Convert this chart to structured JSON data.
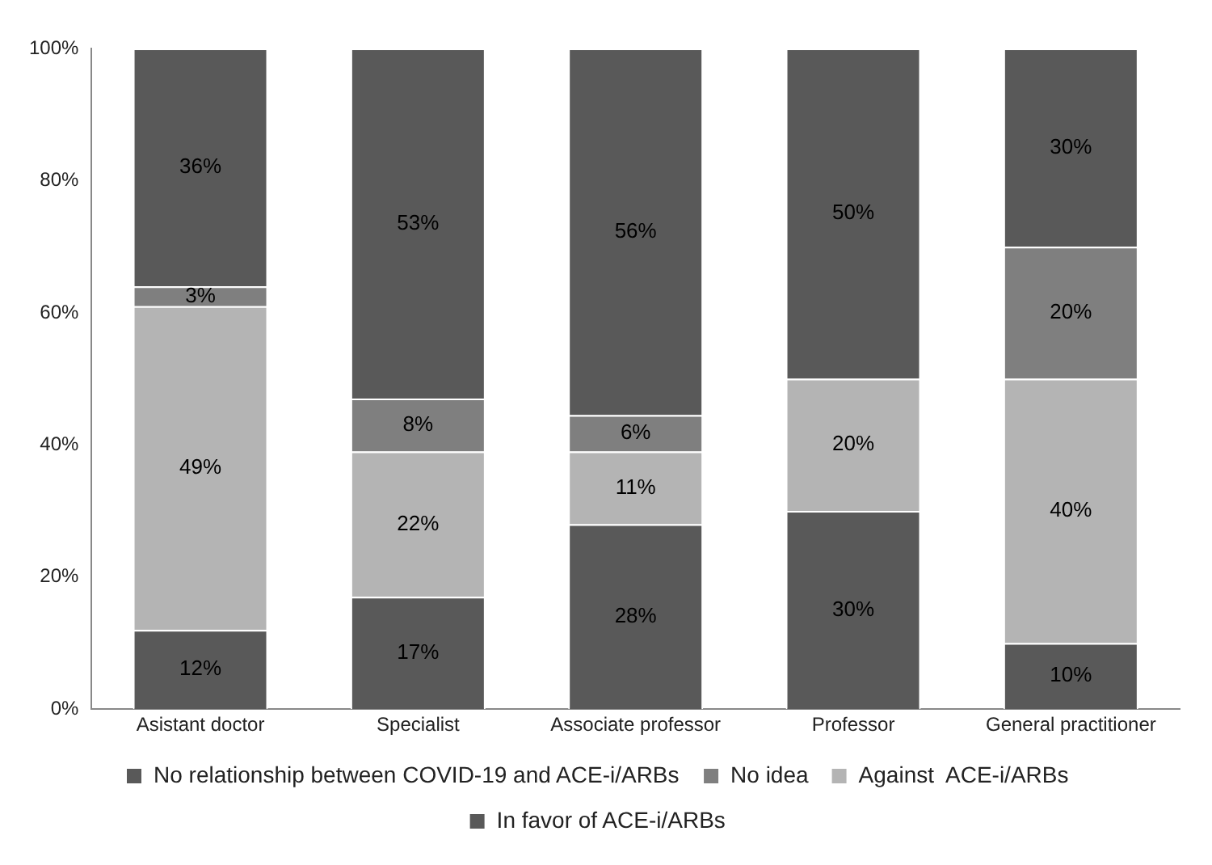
{
  "chart_data": {
    "type": "bar",
    "stacked": true,
    "categories": [
      "Asistant doctor",
      "Specialist",
      "Associate professor",
      "Professor",
      "General practitioner"
    ],
    "series": [
      {
        "name": "In favor of ACE-i/ARBs",
        "color": "#595959",
        "values": [
          12,
          17,
          28,
          30,
          10
        ],
        "value_labels": [
          "12%",
          "17%",
          "28%",
          "30%",
          "10%"
        ]
      },
      {
        "name": "Against  ACE-i/ARBs",
        "color": "#b4b4b4",
        "values": [
          49,
          22,
          11,
          20,
          40
        ],
        "value_labels": [
          "49%",
          "22%",
          "11%",
          "20%",
          "40%"
        ]
      },
      {
        "name": "No idea",
        "color": "#7f7f7f",
        "values": [
          3,
          8,
          5.5,
          0,
          20
        ],
        "value_labels": [
          "3%",
          "8%",
          "6%",
          null,
          "20%"
        ]
      },
      {
        "name": "No relationship between COVID-19 and ACE-i/ARBs",
        "color": "#595959",
        "values": [
          36,
          53,
          55.5,
          50,
          30
        ],
        "value_labels": [
          "36%",
          "53%",
          "56%",
          "50%",
          "30%"
        ]
      }
    ],
    "ylim": [
      0,
      100
    ],
    "yticks": [
      {
        "value": 0,
        "label": "0%"
      },
      {
        "value": 20,
        "label": "20%"
      },
      {
        "value": 40,
        "label": "40%"
      },
      {
        "value": 60,
        "label": "60%"
      },
      {
        "value": 80,
        "label": "80%"
      },
      {
        "value": 100,
        "label": "100%"
      }
    ],
    "grid": false,
    "legend": "bottom"
  }
}
